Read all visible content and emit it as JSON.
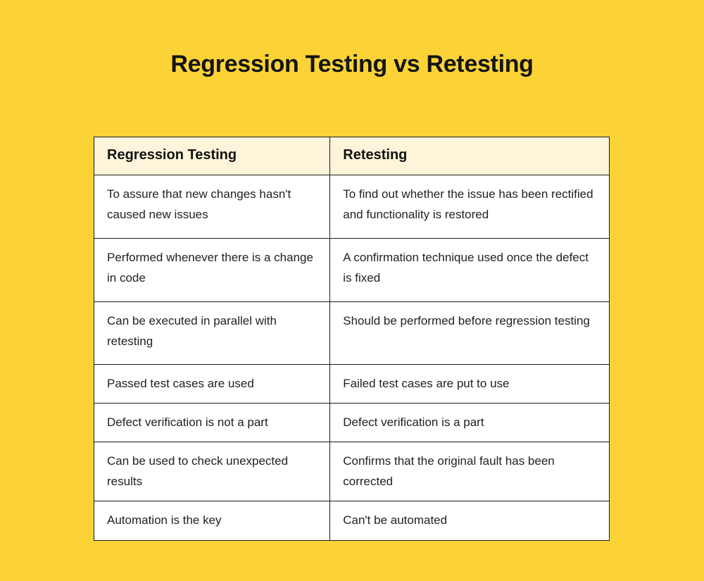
{
  "page": {
    "title": "Regression Testing vs Retesting",
    "background_color": "#FCD337",
    "title_color": "#141414"
  },
  "table": {
    "border_color": "#1b1b1b",
    "header_bg": "#FDF4DA",
    "body_bg": "#FFFFFF",
    "columns": {
      "left": "Regression Testing",
      "right": "Retesting"
    },
    "rows": [
      {
        "left": "To assure that new changes hasn't caused new issues",
        "right": "To find out whether the issue has been rectified and functionality is restored"
      },
      {
        "left": "Performed whenever there is a change in code",
        "right": "A confirmation technique used once the defect is fixed"
      },
      {
        "left": "Can be executed in parallel with retesting",
        "right": "Should be performed before regression testing"
      },
      {
        "left": "Passed test cases are used",
        "right": "Failed test cases are put to use"
      },
      {
        "left": "Defect verification is not a part",
        "right": "Defect verification is a part"
      },
      {
        "left": "Can be used to check unexpected results",
        "right": "Confirms that the original fault has been corrected"
      },
      {
        "left": "Automation is the key",
        "right": "Can't be automated"
      }
    ]
  }
}
